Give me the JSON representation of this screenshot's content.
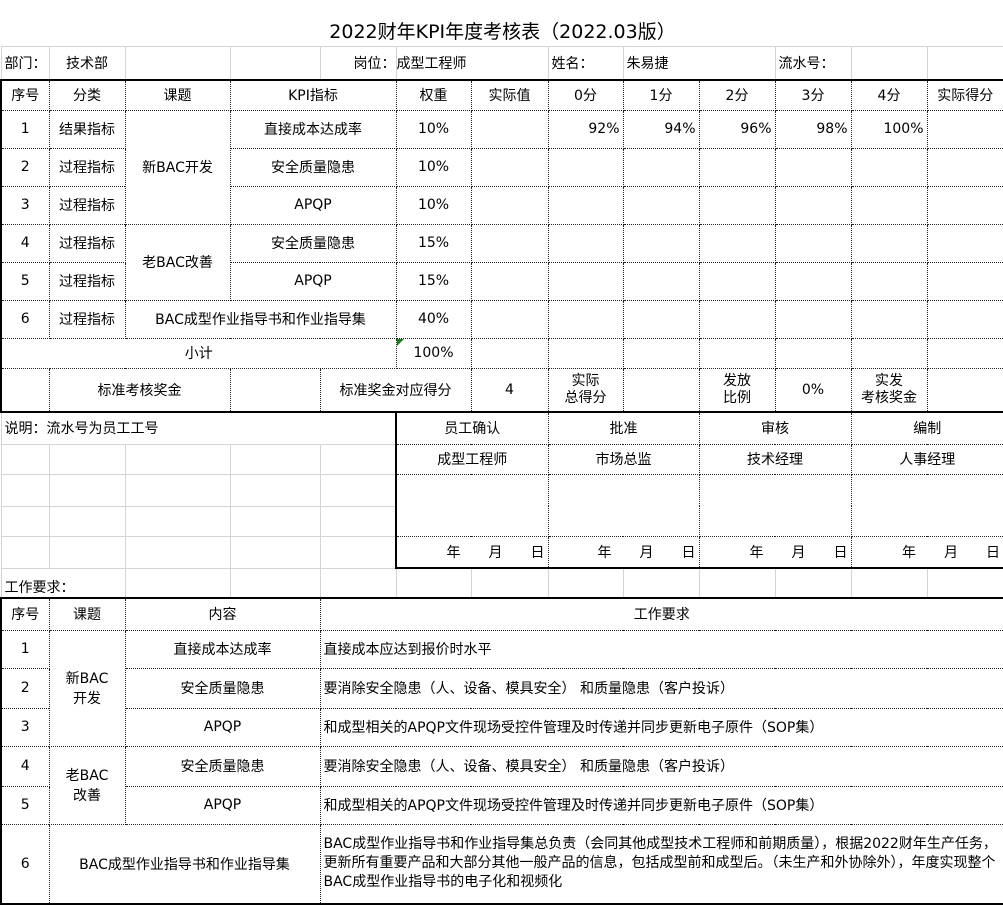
{
  "title": "2022财年KPI年度考核表（2022.03版）",
  "info": {
    "dept_label": "部门：",
    "dept": "技术部",
    "position_label": "岗位：",
    "position": "成型工程师",
    "name_label": "姓名：",
    "name": "朱易捷",
    "serial_label": "流水号："
  },
  "kpi_headers": {
    "no": "序号",
    "category": "分类",
    "topic": "课题",
    "kpi": "KPI指标",
    "weight": "权重",
    "actual": "实际值",
    "s0": "0分",
    "s1": "1分",
    "s2": "2分",
    "s3": "3分",
    "s4": "4分",
    "score": "实际得分"
  },
  "topics": {
    "new": "新BAC开发",
    "old": "老BAC改善",
    "sop": "BAC成型作业指导书和作业指导集"
  },
  "kpi_rows": [
    {
      "no": "1",
      "category": "结果指标",
      "kpi": "直接成本达成率",
      "weight": "10%",
      "scores": [
        "92%",
        "94%",
        "96%",
        "98%",
        "100%"
      ]
    },
    {
      "no": "2",
      "category": "过程指标",
      "kpi": "安全质量隐患",
      "weight": "10%"
    },
    {
      "no": "3",
      "category": "过程指标",
      "kpi": "APQP",
      "weight": "10%"
    },
    {
      "no": "4",
      "category": "过程指标",
      "kpi": "安全质量隐患",
      "weight": "15%"
    },
    {
      "no": "5",
      "category": "过程指标",
      "kpi": "APQP",
      "weight": "15%"
    },
    {
      "no": "6",
      "category": "过程指标",
      "weight": "40%"
    }
  ],
  "subtotal": {
    "label": "小计",
    "weight": "100%"
  },
  "bonus": {
    "std_bonus": "标准考核奖金",
    "std_score_label": "标准奖金对应得分",
    "std_score": "4",
    "total_label_1": "实际",
    "total_label_2": "总得分",
    "ratio_label_1": "发放",
    "ratio_label_2": "比例",
    "ratio": "0%",
    "paid_label_1": "实发",
    "paid_label_2": "考核奖金"
  },
  "note": "说明：流水号为员工工号",
  "signoff": {
    "headers": [
      "员工确认",
      "批准",
      "审核",
      "编制"
    ],
    "roles": [
      "成型工程师",
      "市场总监",
      "技术经理",
      "人事经理"
    ],
    "date": {
      "y": "年",
      "m": "月",
      "d": "日"
    }
  },
  "work_req_label": "工作要求：",
  "req_headers": {
    "no": "序号",
    "topic": "课题",
    "content": "内容",
    "req": "工作要求"
  },
  "req_topics": {
    "new": "新BAC\n开发",
    "old": "老BAC\n改善"
  },
  "req_rows": [
    {
      "no": "1",
      "content": "直接成本达成率",
      "req": "直接成本应达到报价时水平"
    },
    {
      "no": "2",
      "content": "安全质量隐患",
      "req": "要消除安全隐患（人、设备、模具安全） 和质量隐患（客户投诉）"
    },
    {
      "no": "3",
      "content": "APQP",
      "req": "和成型相关的APQP文件现场受控件管理及时传递并同步更新电子原件（SOP集）"
    },
    {
      "no": "4",
      "content": "安全质量隐患",
      "req": "要消除安全隐患（人、设备、模具安全） 和质量隐患（客户投诉）"
    },
    {
      "no": "5",
      "content": "APQP",
      "req": "和成型相关的APQP文件现场受控件管理及时传递并同步更新电子原件（SOP集）"
    },
    {
      "no": "6",
      "content": "BAC成型作业指导书和作业指导集",
      "req": "BAC成型作业指导书和作业指导集总负责（会同其他成型技术工程师和前期质量），根据2022财年生产任务，更新所有重要产品和大部分其他一般产品的信息，包括成型前和成型后。（未生产和外协除外），年度实现整个BAC成型作业指导书的电子化和视频化"
    }
  ]
}
